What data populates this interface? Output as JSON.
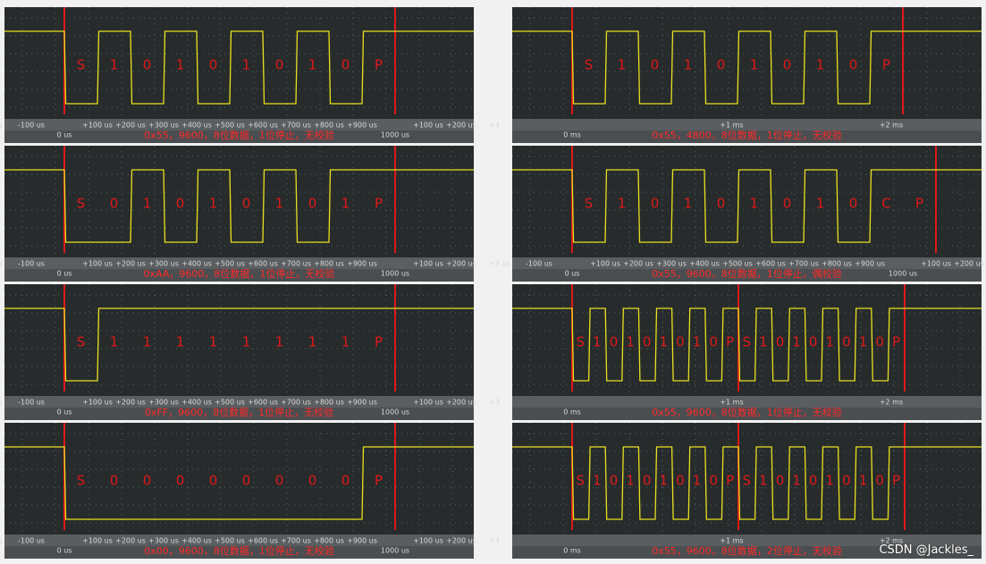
{
  "panels": [
    {
      "frames": [
        [
          "S",
          "1",
          "0",
          "1",
          "0",
          "1",
          "0",
          "1",
          "0",
          "P"
        ]
      ],
      "axis_upper": [
        "us",
        "-100 us",
        null,
        "+100 us",
        "+200 us",
        "+300 us",
        "+400 us",
        "+500 us",
        "+600 us",
        "+700 us",
        "+800 us",
        "+900 us",
        null,
        "+100 us",
        "+200 us",
        "+3"
      ],
      "axis_lower": [
        null,
        null,
        "0 us",
        null,
        null,
        null,
        null,
        null,
        null,
        null,
        null,
        null,
        "1000 us"
      ],
      "caption": "0x55，9600，8位数据，1位停止，无校验"
    },
    {
      "frames": [
        [
          "S",
          "1",
          "0",
          "1",
          "0",
          "1",
          "0",
          "1",
          "0",
          "P"
        ]
      ],
      "axis_upper": [
        null,
        "+1 ms",
        "+2 ms"
      ],
      "axis_lower": [
        "0 ms"
      ],
      "caption": "0x55，4800，8位数据，1位停止，无校验"
    },
    {
      "frames": [
        [
          "S",
          "0",
          "1",
          "0",
          "1",
          "0",
          "1",
          "0",
          "1",
          "P"
        ]
      ],
      "axis_upper": [
        "us",
        "-100 us",
        null,
        "+100 us",
        "+200 us",
        "+300 us",
        "+400 us",
        "+500 us",
        "+600 us",
        "+700 us",
        "+800 us",
        "+900 us",
        null,
        "+100 us",
        "+200 us",
        "+3"
      ],
      "axis_lower": [
        null,
        null,
        "0 us",
        null,
        null,
        null,
        null,
        null,
        null,
        null,
        null,
        null,
        "1000 us"
      ],
      "caption": "0xAA，9600，8位数据，1位停止，无校验"
    },
    {
      "frames": [
        [
          "S",
          "1",
          "0",
          "1",
          "0",
          "1",
          "0",
          "1",
          "0",
          "C",
          "P"
        ]
      ],
      "axis_upper": [
        "us",
        "-100 us",
        null,
        "+100 us",
        "+200 us",
        "+300 us",
        "+400 us",
        "+500 us",
        "+600 us",
        "+700 us",
        "+800 us",
        "+900 us",
        null,
        "+100 us",
        "+200 us",
        "+"
      ],
      "axis_lower": [
        null,
        null,
        "0 us",
        null,
        null,
        null,
        null,
        null,
        null,
        null,
        null,
        null,
        "1000 us"
      ],
      "caption": "0x55，9600，8位数据，1位停止，偶校验"
    },
    {
      "frames": [
        [
          "S",
          "1",
          "1",
          "1",
          "1",
          "1",
          "1",
          "1",
          "1",
          "P"
        ]
      ],
      "axis_upper": [
        "us",
        "-100 us",
        null,
        "+100 us",
        "+200 us",
        "+300 us",
        "+400 us",
        "+500 us",
        "+600 us",
        "+700 us",
        "+800 us",
        "+900 us",
        null,
        "+100 us",
        "+200 us",
        "+3"
      ],
      "axis_lower": [
        null,
        null,
        "0 us",
        null,
        null,
        null,
        null,
        null,
        null,
        null,
        null,
        null,
        "1000 us"
      ],
      "caption": "0xFF，9600，8位数据，1位停止，无校验"
    },
    {
      "frames": [
        [
          "S",
          "1",
          "0",
          "1",
          "0",
          "1",
          "0",
          "1",
          "0",
          "P"
        ],
        [
          "S",
          "1",
          "0",
          "1",
          "0",
          "1",
          "0",
          "1",
          "0",
          "P"
        ]
      ],
      "axis_upper": [
        null,
        "+1 ms",
        "+2 ms"
      ],
      "axis_lower": [
        "0 ms"
      ],
      "caption": "0x55，9600，8位数据，1位停止，无校验"
    },
    {
      "frames": [
        [
          "S",
          "0",
          "0",
          "0",
          "0",
          "0",
          "0",
          "0",
          "0",
          "P"
        ]
      ],
      "axis_upper": [
        "us",
        "-100 us",
        null,
        "+100 us",
        "+200 us",
        "+300 us",
        "+400 us",
        "+500 us",
        "+600 us",
        "+700 us",
        "+800 us",
        "+900 us",
        null,
        "+100 us",
        "+200 us",
        "+3"
      ],
      "axis_lower": [
        null,
        null,
        "0 us",
        null,
        null,
        null,
        null,
        null,
        null,
        null,
        null,
        null,
        "1000 us"
      ],
      "caption": "0x00，9600，8位数据，1位停止，无校验"
    },
    {
      "frames": [
        [
          "S",
          "1",
          "0",
          "1",
          "0",
          "1",
          "0",
          "1",
          "0",
          "P"
        ],
        [
          "S",
          "1",
          "0",
          "1",
          "0",
          "1",
          "0",
          "1",
          "0",
          "P"
        ]
      ],
      "axis_upper": [
        null,
        "+1 ms",
        "+2 ms"
      ],
      "axis_lower": [
        "0 ms"
      ],
      "caption": "0x55，9600，8位数据，2位停止，无校验"
    }
  ],
  "watermark": "CSDN @Jackles_"
}
